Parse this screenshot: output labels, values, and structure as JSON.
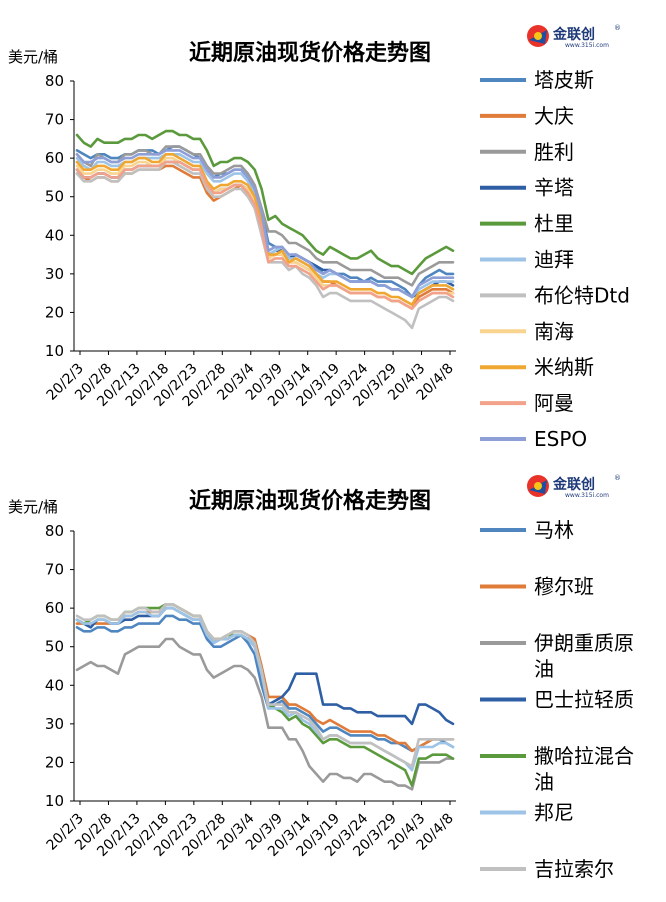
{
  "logo": {
    "brand": "金联创",
    "site": "www.315i.com"
  },
  "chart_data": [
    {
      "type": "line",
      "title": "近期原油现货价格走势图",
      "ylabel": "美元/桶",
      "ylim": [
        10,
        80
      ],
      "yticks": [
        "80",
        "70",
        "60",
        "50",
        "40",
        "30",
        "20",
        "10"
      ],
      "grid": false,
      "legend": "right",
      "xtick_labels": [
        "20/2/3",
        "20/2/8",
        "20/2/13",
        "20/2/18",
        "20/2/23",
        "20/2/28",
        "20/3/4",
        "20/3/9",
        "20/3/14",
        "20/3/19",
        "20/3/24",
        "20/3/29",
        "20/4/3",
        "20/4/8"
      ],
      "series": [
        {
          "name": "塔皮斯",
          "color": "#4f86c0",
          "values": [
            62,
            61,
            60,
            61,
            61,
            60,
            60,
            61,
            61,
            62,
            62,
            62,
            61,
            62,
            63,
            63,
            62,
            61,
            60,
            57,
            55,
            56,
            56,
            57,
            57,
            55,
            52,
            46,
            38,
            37,
            36,
            34,
            35,
            34,
            33,
            32,
            30,
            31,
            30,
            30,
            29,
            29,
            28,
            29,
            28,
            28,
            28,
            27,
            26,
            24,
            27,
            29,
            30,
            31,
            30,
            30
          ]
        },
        {
          "name": "大庆",
          "color": "#e07b39",
          "values": [
            56,
            55,
            54,
            55,
            55,
            54,
            54,
            56,
            56,
            57,
            57,
            57,
            57,
            58,
            58,
            57,
            56,
            55,
            55,
            51,
            49,
            50,
            51,
            52,
            53,
            51,
            49,
            44,
            34,
            35,
            35,
            33,
            33,
            32,
            31,
            30,
            28,
            28,
            27,
            26,
            25,
            25,
            25,
            25,
            24,
            24,
            23,
            23,
            22,
            21,
            24,
            25,
            26,
            26,
            26,
            25
          ]
        },
        {
          "name": "胜利",
          "color": "#9a9a9a",
          "values": [
            61,
            59,
            58,
            61,
            60,
            59,
            59,
            61,
            61,
            62,
            62,
            61,
            61,
            63,
            63,
            63,
            62,
            61,
            61,
            58,
            56,
            56,
            57,
            58,
            58,
            56,
            53,
            47,
            41,
            41,
            40,
            38,
            38,
            37,
            36,
            34,
            33,
            33,
            33,
            32,
            31,
            31,
            31,
            31,
            30,
            29,
            29,
            29,
            28,
            27,
            30,
            31,
            32,
            33,
            33,
            33
          ]
        },
        {
          "name": "辛塔",
          "color": "#2e5fa4",
          "values": [
            57,
            55,
            55,
            56,
            56,
            55,
            55,
            57,
            57,
            58,
            58,
            58,
            58,
            59,
            59,
            59,
            58,
            57,
            57,
            53,
            51,
            52,
            52,
            53,
            53,
            52,
            50,
            44,
            35,
            36,
            36,
            34,
            35,
            34,
            33,
            32,
            31,
            31,
            30,
            29,
            28,
            28,
            28,
            28,
            27,
            27,
            26,
            26,
            25,
            24,
            25,
            26,
            27,
            28,
            28,
            27
          ]
        },
        {
          "name": "杜里",
          "color": "#5b9a3c",
          "values": [
            66,
            64,
            63,
            65,
            64,
            64,
            64,
            65,
            65,
            66,
            66,
            65,
            66,
            67,
            67,
            66,
            66,
            65,
            65,
            62,
            58,
            59,
            59,
            60,
            60,
            59,
            57,
            52,
            44,
            45,
            43,
            42,
            41,
            40,
            38,
            36,
            35,
            37,
            36,
            35,
            34,
            34,
            35,
            36,
            34,
            33,
            32,
            32,
            31,
            30,
            32,
            34,
            35,
            36,
            37,
            36
          ]
        },
        {
          "name": "迪拜",
          "color": "#9dc3e6",
          "values": [
            60,
            58,
            57,
            59,
            59,
            58,
            58,
            59,
            59,
            60,
            60,
            60,
            60,
            61,
            61,
            61,
            60,
            59,
            59,
            56,
            54,
            54,
            55,
            56,
            56,
            54,
            51,
            45,
            35,
            36,
            37,
            34,
            34,
            33,
            32,
            30,
            29,
            30,
            30,
            29,
            28,
            28,
            28,
            28,
            27,
            27,
            26,
            26,
            25,
            24,
            26,
            27,
            28,
            28,
            28,
            28
          ]
        },
        {
          "name": "布伦特Dtd",
          "color": "#c0c0c0",
          "values": [
            56,
            54,
            54,
            55,
            55,
            54,
            54,
            56,
            56,
            57,
            57,
            57,
            57,
            59,
            59,
            58,
            57,
            56,
            56,
            52,
            50,
            50,
            51,
            52,
            52,
            50,
            47,
            40,
            33,
            33,
            33,
            31,
            32,
            30,
            29,
            27,
            24,
            25,
            25,
            24,
            23,
            23,
            23,
            23,
            22,
            21,
            20,
            19,
            18,
            16,
            21,
            22,
            23,
            24,
            24,
            23
          ]
        },
        {
          "name": "南海",
          "color": "#f9d48f",
          "values": [
            58,
            56,
            56,
            57,
            57,
            56,
            56,
            58,
            58,
            59,
            59,
            58,
            58,
            60,
            60,
            59,
            58,
            57,
            57,
            53,
            51,
            52,
            52,
            53,
            53,
            52,
            49,
            43,
            34,
            35,
            35,
            33,
            33,
            32,
            31,
            29,
            27,
            27,
            27,
            26,
            25,
            25,
            25,
            25,
            24,
            24,
            23,
            23,
            22,
            21,
            23,
            24,
            25,
            25,
            25,
            25
          ]
        },
        {
          "name": "米纳斯",
          "color": "#f0a732",
          "values": [
            59,
            57,
            57,
            58,
            58,
            57,
            57,
            59,
            59,
            60,
            60,
            59,
            59,
            61,
            61,
            60,
            59,
            58,
            58,
            54,
            52,
            53,
            53,
            54,
            54,
            53,
            50,
            44,
            35,
            35,
            36,
            33,
            34,
            33,
            32,
            30,
            28,
            28,
            28,
            27,
            26,
            26,
            26,
            26,
            25,
            25,
            24,
            24,
            23,
            22,
            25,
            26,
            27,
            27,
            27,
            26
          ]
        },
        {
          "name": "阿曼",
          "color": "#f2a28a",
          "values": [
            57,
            55,
            55,
            56,
            56,
            55,
            55,
            57,
            57,
            58,
            58,
            58,
            58,
            59,
            59,
            59,
            58,
            57,
            57,
            53,
            51,
            51,
            52,
            53,
            53,
            51,
            48,
            42,
            33,
            34,
            34,
            32,
            32,
            31,
            30,
            28,
            26,
            27,
            27,
            26,
            25,
            25,
            25,
            25,
            24,
            24,
            23,
            23,
            22,
            21,
            23,
            24,
            25,
            25,
            25,
            24
          ]
        },
        {
          "name": "ESPO",
          "color": "#8e9fd8",
          "values": [
            61,
            59,
            59,
            60,
            60,
            59,
            59,
            60,
            60,
            61,
            61,
            61,
            61,
            62,
            62,
            62,
            61,
            60,
            60,
            57,
            55,
            55,
            56,
            57,
            57,
            55,
            52,
            46,
            36,
            37,
            37,
            35,
            35,
            34,
            33,
            31,
            30,
            31,
            30,
            29,
            28,
            28,
            28,
            28,
            27,
            27,
            26,
            26,
            25,
            24,
            27,
            28,
            29,
            29,
            29,
            29
          ]
        }
      ]
    },
    {
      "type": "line",
      "title": "近期原油现货价格走势图",
      "ylabel": "美元/桶",
      "ylim": [
        10,
        80
      ],
      "yticks": [
        "80",
        "70",
        "60",
        "50",
        "40",
        "30",
        "20",
        "10"
      ],
      "grid": false,
      "legend": "right",
      "xtick_labels": [
        "20/2/3",
        "20/2/8",
        "20/2/13",
        "20/2/18",
        "20/2/23",
        "20/2/28",
        "20/3/4",
        "20/3/9",
        "20/3/14",
        "20/3/19",
        "20/3/24",
        "20/3/29",
        "20/4/3",
        "20/4/8"
      ],
      "series": [
        {
          "name": "马林",
          "color": "#4f86c0",
          "values": [
            55,
            54,
            54,
            55,
            55,
            54,
            54,
            55,
            55,
            56,
            56,
            56,
            56,
            58,
            58,
            57,
            57,
            56,
            56,
            52,
            50,
            50,
            51,
            52,
            53,
            51,
            48,
            40,
            34,
            35,
            36,
            34,
            34,
            33,
            32,
            30,
            28,
            29,
            29,
            28,
            27,
            27,
            27,
            27,
            26,
            26,
            25,
            25,
            24,
            23,
            24,
            25,
            26,
            26,
            25,
            24
          ]
        },
        {
          "name": "穆尔班",
          "color": "#e07b39",
          "values": [
            56,
            56,
            56,
            56,
            56,
            56,
            56,
            58,
            58,
            59,
            59,
            59,
            59,
            61,
            61,
            60,
            59,
            58,
            58,
            54,
            52,
            52,
            53,
            54,
            54,
            53,
            52,
            45,
            37,
            37,
            37,
            35,
            35,
            34,
            33,
            31,
            30,
            31,
            30,
            29,
            28,
            28,
            28,
            28,
            27,
            27,
            26,
            25,
            25,
            23,
            24,
            25,
            26,
            26,
            26,
            26
          ]
        },
        {
          "name": "伊朗重质原油",
          "color": "#9a9a9a",
          "values": [
            44,
            45,
            46,
            45,
            45,
            44,
            43,
            48,
            49,
            50,
            50,
            50,
            50,
            52,
            52,
            50,
            49,
            48,
            48,
            44,
            42,
            43,
            44,
            45,
            45,
            44,
            42,
            37,
            29,
            29,
            29,
            26,
            26,
            23,
            19,
            17,
            15,
            17,
            17,
            16,
            16,
            15,
            17,
            17,
            16,
            15,
            15,
            14,
            14,
            13,
            20,
            20,
            20,
            20,
            21,
            21
          ]
        },
        {
          "name": "巴士拉轻质",
          "color": "#2e5fa4",
          "values": [
            57,
            56,
            55,
            57,
            57,
            56,
            56,
            57,
            57,
            58,
            58,
            58,
            58,
            60,
            60,
            59,
            58,
            57,
            57,
            53,
            51,
            52,
            52,
            53,
            53,
            52,
            50,
            44,
            35,
            36,
            37,
            39,
            43,
            43,
            43,
            43,
            35,
            35,
            35,
            34,
            34,
            33,
            33,
            33,
            32,
            32,
            32,
            32,
            32,
            30,
            35,
            35,
            34,
            33,
            31,
            30
          ]
        },
        {
          "name": "撒哈拉混合油",
          "color": "#5b9a3c",
          "values": [
            57,
            56,
            57,
            58,
            58,
            57,
            57,
            59,
            59,
            60,
            60,
            60,
            60,
            61,
            61,
            60,
            59,
            58,
            58,
            54,
            52,
            52,
            53,
            53,
            53,
            52,
            51,
            44,
            35,
            34,
            33,
            31,
            32,
            30,
            29,
            27,
            25,
            26,
            26,
            25,
            24,
            24,
            24,
            23,
            22,
            21,
            20,
            19,
            18,
            14,
            21,
            21,
            22,
            22,
            22,
            21
          ]
        },
        {
          "name": "邦尼",
          "color": "#9dc3e6",
          "values": [
            57,
            56,
            56,
            57,
            57,
            56,
            56,
            58,
            58,
            59,
            59,
            58,
            58,
            60,
            60,
            59,
            58,
            57,
            57,
            53,
            51,
            52,
            52,
            53,
            53,
            52,
            50,
            43,
            34,
            34,
            34,
            32,
            33,
            31,
            30,
            28,
            26,
            27,
            27,
            26,
            25,
            25,
            25,
            25,
            24,
            23,
            22,
            21,
            20,
            18,
            24,
            24,
            24,
            25,
            25,
            24
          ]
        },
        {
          "name": "吉拉索尔",
          "color": "#c0c0c0",
          "values": [
            58,
            57,
            57,
            58,
            58,
            57,
            57,
            59,
            59,
            60,
            60,
            59,
            59,
            61,
            61,
            60,
            59,
            58,
            58,
            54,
            52,
            52,
            53,
            54,
            54,
            53,
            51,
            44,
            35,
            35,
            35,
            33,
            33,
            32,
            31,
            29,
            26,
            27,
            27,
            26,
            25,
            25,
            25,
            25,
            24,
            23,
            22,
            21,
            20,
            19,
            26,
            26,
            26,
            26,
            26,
            26
          ]
        }
      ]
    }
  ]
}
